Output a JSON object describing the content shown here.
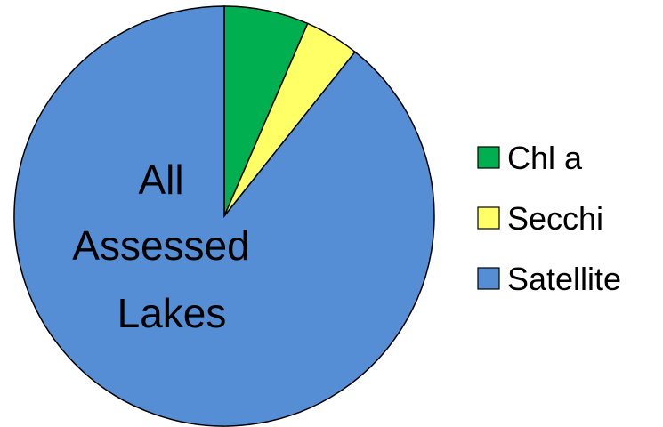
{
  "chart_data": {
    "type": "pie",
    "title": "",
    "center_label": [
      "All",
      "Assessed",
      "Lakes"
    ],
    "categories": [
      "Chl a",
      "Secchi",
      "Satellite"
    ],
    "values": [
      6.5,
      4.2,
      89.3
    ],
    "colors": [
      "#00B050",
      "#FFFF66",
      "#558ED5"
    ],
    "start_angle": "12 o'clock",
    "direction": "clockwise",
    "legend_position": "right"
  }
}
